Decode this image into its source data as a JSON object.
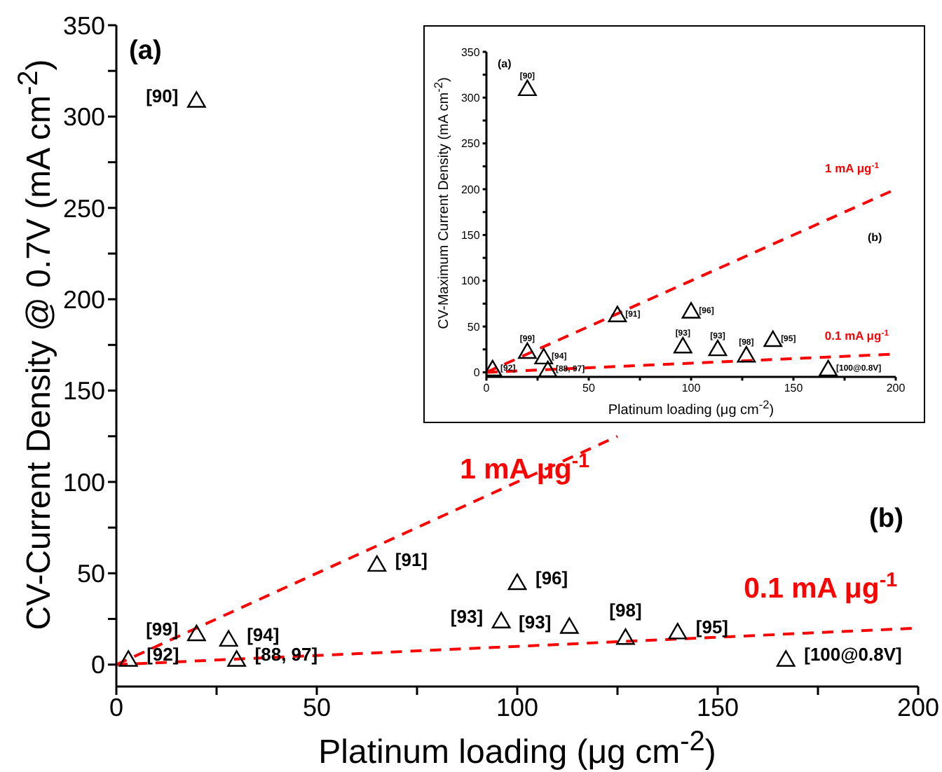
{
  "chart_data": [
    {
      "type": "scatter",
      "xlabel": "Platinum loading (μg cm$^{-2}$)",
      "ylabel": "CV-Current Density @ 0.7V (mA cm$^{-2}$)",
      "xlim": [
        0,
        200
      ],
      "xticks": [
        0,
        {
          "value": 25,
          "label": null
        },
        50,
        {
          "value": 75,
          "label": null
        },
        100,
        {
          "value": 125,
          "label": null
        },
        150,
        {
          "value": 175,
          "label": null
        },
        200
      ],
      "ylim": [
        -12,
        350
      ],
      "yticks": [
        0,
        {
          "value": 25,
          "label": null
        },
        50,
        {
          "value": 75,
          "label": null
        },
        100,
        {
          "value": 125,
          "label": null
        },
        150,
        {
          "value": 175,
          "label": null
        },
        200,
        {
          "value": 225,
          "label": null
        },
        250,
        {
          "value": 275,
          "label": null
        },
        300,
        {
          "value": 325,
          "label": null
        },
        350
      ],
      "marker": "triangle",
      "legend": false,
      "grid": false,
      "series": [
        {
          "color": "#000000",
          "x": [
            20,
            3,
            20,
            28,
            30,
            65,
            100,
            96,
            113,
            127,
            140,
            167
          ],
          "values": [
            308,
            2,
            16,
            13,
            2,
            54,
            44,
            23,
            20,
            14,
            17,
            2
          ]
        },
        {
          "type": "line",
          "name": "1 mA μg$^{-1}$",
          "color": "#ff0000",
          "line_style": "dashed",
          "marker": "none",
          "x": [
            0,
            125
          ],
          "values": [
            0,
            125
          ]
        },
        {
          "type": "line",
          "name": "0.1 mA μg$^{-1}$",
          "color": "#ff0000",
          "line_style": "dashed",
          "marker": "none",
          "x": [
            0,
            200
          ],
          "values": [
            0,
            20
          ]
        }
      ],
      "annotations": [
        "(a)",
        "(b)",
        {
          "text": "[90]",
          "x": 20,
          "y": 308
        },
        {
          "text": "[92]",
          "x": 3,
          "y": 2
        },
        {
          "text": "[99]",
          "x": 20,
          "y": 16
        },
        {
          "text": "[94]",
          "x": 28,
          "y": 13
        },
        {
          "text": "[88, 97]",
          "x": 30,
          "y": 2
        },
        {
          "text": "[91]",
          "x": 65,
          "y": 54
        },
        {
          "text": "[96]",
          "x": 100,
          "y": 44
        },
        {
          "text": "[93]",
          "x": 96,
          "y": 23
        },
        {
          "text": "[93]",
          "x": 113,
          "y": 20
        },
        {
          "text": "[98]",
          "x": 127,
          "y": 14
        },
        {
          "text": "[95]",
          "x": 140,
          "y": 17
        },
        {
          "text": "[100@0.8V]",
          "x": 167,
          "y": 2
        }
      ]
    },
    {
      "type": "scatter",
      "xlabel": "Platinum loading (μg cm$^{-2}$)",
      "ylabel": "CV-Maximum Current Density (mA cm$^{-2}$)",
      "xlim": [
        0,
        200
      ],
      "xticks": [
        0,
        {
          "value": 25,
          "label": null
        },
        50,
        {
          "value": 75,
          "label": null
        },
        100,
        {
          "value": 125,
          "label": null
        },
        150,
        {
          "value": 175,
          "label": null
        },
        200
      ],
      "ylim": [
        -5,
        350
      ],
      "yticks": [
        0,
        {
          "value": 25,
          "label": null
        },
        50,
        {
          "value": 75,
          "label": null
        },
        100,
        {
          "value": 125,
          "label": null
        },
        150,
        {
          "value": 175,
          "label": null
        },
        200,
        {
          "value": 225,
          "label": null
        },
        250,
        {
          "value": 275,
          "label": null
        },
        300,
        {
          "value": 325,
          "label": null
        },
        350
      ],
      "marker": "triangle",
      "legend": false,
      "grid": false,
      "series": [
        {
          "color": "#000000",
          "x": [
            20,
            3,
            20,
            28,
            30,
            64,
            100,
            96,
            113,
            127,
            140,
            167
          ],
          "values": [
            308,
            2,
            21,
            15,
            1,
            61,
            65,
            27,
            24,
            17,
            34,
            2
          ]
        },
        {
          "type": "line",
          "name": "1 mA μg$^{-1}$",
          "color": "#ff0000",
          "line_style": "dashed",
          "marker": "none",
          "x": [
            0,
            200
          ],
          "values": [
            0,
            200
          ]
        },
        {
          "type": "line",
          "name": "0.1 mA μg$^{-1}$",
          "color": "#ff0000",
          "line_style": "dashed",
          "marker": "none",
          "x": [
            0,
            200
          ],
          "values": [
            0,
            20
          ]
        }
      ],
      "annotations": [
        "(a)",
        "(b)",
        {
          "text": "[90]",
          "x": 20,
          "y": 308
        },
        {
          "text": "[92]",
          "x": 3,
          "y": 2
        },
        {
          "text": "[99]",
          "x": 20,
          "y": 21
        },
        {
          "text": "[94]",
          "x": 28,
          "y": 15
        },
        {
          "text": "[88, 97]",
          "x": 30,
          "y": 1
        },
        {
          "text": "[91]",
          "x": 64,
          "y": 61
        },
        {
          "text": "[96]",
          "x": 100,
          "y": 65
        },
        {
          "text": "[93]",
          "x": 96,
          "y": 27
        },
        {
          "text": "[93]",
          "x": 113,
          "y": 24
        },
        {
          "text": "[98]",
          "x": 127,
          "y": 17
        },
        {
          "text": "[95]",
          "x": 140,
          "y": 34
        },
        {
          "text": "[100@0.8V]",
          "x": 167,
          "y": 2
        }
      ]
    }
  ]
}
